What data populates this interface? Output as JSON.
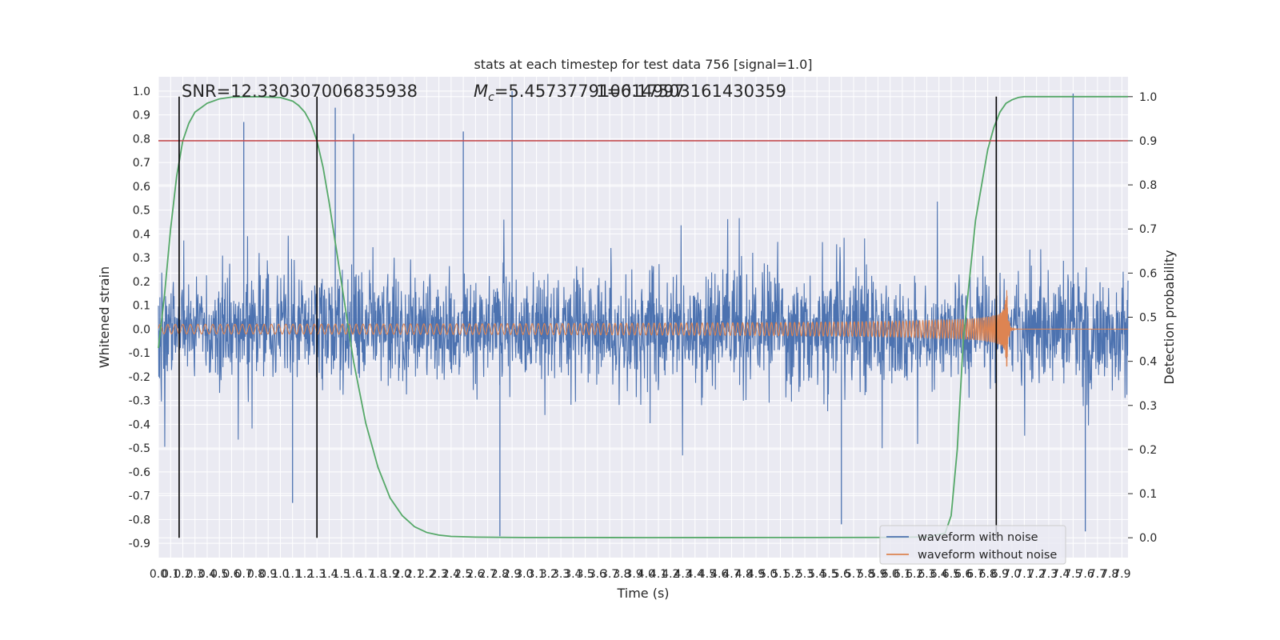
{
  "chart_data": {
    "type": "line",
    "title": "stats at each timestep for test data 756 [signal=1.0]",
    "xlabel": "Time (s)",
    "ylabel": "Whitened strain",
    "y2label": "Detection probability",
    "xlim": [
      0.0,
      7.95
    ],
    "ylim": [
      -0.96,
      1.06
    ],
    "y2lim": [
      -0.045,
      1.045
    ],
    "xticks": [
      0.0,
      0.1,
      0.2,
      0.3,
      0.4,
      0.5,
      0.6,
      0.7,
      0.8,
      0.9,
      1.0,
      1.1,
      1.2,
      1.3,
      1.4,
      1.5,
      1.6,
      1.7,
      1.8,
      1.9,
      2.0,
      2.1,
      2.2,
      2.3,
      2.4,
      2.5,
      2.6,
      2.7,
      2.8,
      2.9,
      3.0,
      3.1,
      3.2,
      3.3,
      3.4,
      3.5,
      3.6,
      3.7,
      3.8,
      3.9,
      4.0,
      4.1,
      4.2,
      4.3,
      4.4,
      4.5,
      4.6,
      4.7,
      4.8,
      4.9,
      5.0,
      5.1,
      5.2,
      5.3,
      5.4,
      5.5,
      5.6,
      5.7,
      5.8,
      5.9,
      6.0,
      6.1,
      6.2,
      6.3,
      6.4,
      6.5,
      6.6,
      6.7,
      6.8,
      6.9,
      7.0,
      7.1,
      7.2,
      7.3,
      7.4,
      7.5,
      7.6,
      7.7,
      7.8,
      7.9
    ],
    "yticks": [
      -0.9,
      -0.8,
      -0.7,
      -0.6,
      -0.5,
      -0.4,
      -0.3,
      -0.2,
      -0.1,
      0.0,
      0.1,
      0.2,
      0.3,
      0.4,
      0.5,
      0.6,
      0.7,
      0.8,
      0.9,
      1.0
    ],
    "y2ticks": [
      0.0,
      0.1,
      0.2,
      0.3,
      0.4,
      0.5,
      0.6,
      0.7,
      0.8,
      0.9,
      1.0
    ],
    "grid": true,
    "legend_placement": "lower-right",
    "series": [
      {
        "name": "waveform with noise",
        "color": "#4c72b0",
        "axis": "left",
        "kind": "noisy-strain",
        "typical_range": [
          -0.4,
          0.45
        ],
        "max": 1.0,
        "min": -0.87
      },
      {
        "name": "waveform without noise",
        "color": "#dd8452",
        "axis": "left",
        "kind": "chirp",
        "amplitude_start": 0.02,
        "amplitude_peak": 0.3,
        "merger_time": 6.95,
        "cycles_start_per_s": 16
      },
      {
        "name": "",
        "color": "#55a868",
        "axis": "right",
        "kind": "probability",
        "x": [
          0.0,
          0.05,
          0.1,
          0.15,
          0.2,
          0.25,
          0.3,
          0.4,
          0.5,
          0.6,
          0.8,
          1.0,
          1.1,
          1.15,
          1.2,
          1.25,
          1.3,
          1.35,
          1.4,
          1.5,
          1.6,
          1.7,
          1.8,
          1.9,
          2.0,
          2.1,
          2.2,
          2.3,
          2.4,
          2.6,
          3.0,
          3.5,
          4.0,
          5.0,
          6.0,
          6.3,
          6.45,
          6.5,
          6.55,
          6.6,
          6.7,
          6.8,
          6.85,
          6.9,
          6.95,
          7.0,
          7.05,
          7.1,
          7.3,
          7.95
        ],
        "y": [
          0.43,
          0.55,
          0.7,
          0.82,
          0.9,
          0.94,
          0.965,
          0.985,
          0.995,
          0.999,
          1.0,
          0.998,
          0.99,
          0.98,
          0.965,
          0.94,
          0.9,
          0.84,
          0.76,
          0.58,
          0.4,
          0.26,
          0.16,
          0.09,
          0.05,
          0.025,
          0.012,
          0.006,
          0.003,
          0.0015,
          0.0005,
          0.0005,
          0.0004,
          0.0005,
          0.0008,
          0.002,
          0.01,
          0.05,
          0.2,
          0.45,
          0.72,
          0.88,
          0.93,
          0.965,
          0.985,
          0.993,
          0.998,
          1.0,
          1.0,
          1.0
        ]
      }
    ],
    "hlines": [
      {
        "y2": 0.9,
        "color": "#c44e52"
      }
    ],
    "vlines": [
      0.17,
      1.3,
      6.87
    ],
    "annotations": [
      {
        "text": "SNR=12.330307006835938"
      },
      {
        "text": "M",
        "sub": "c",
        "rest": "=5.457377910614997"
      },
      {
        "text": "1=0.17503161430359"
      }
    ]
  }
}
